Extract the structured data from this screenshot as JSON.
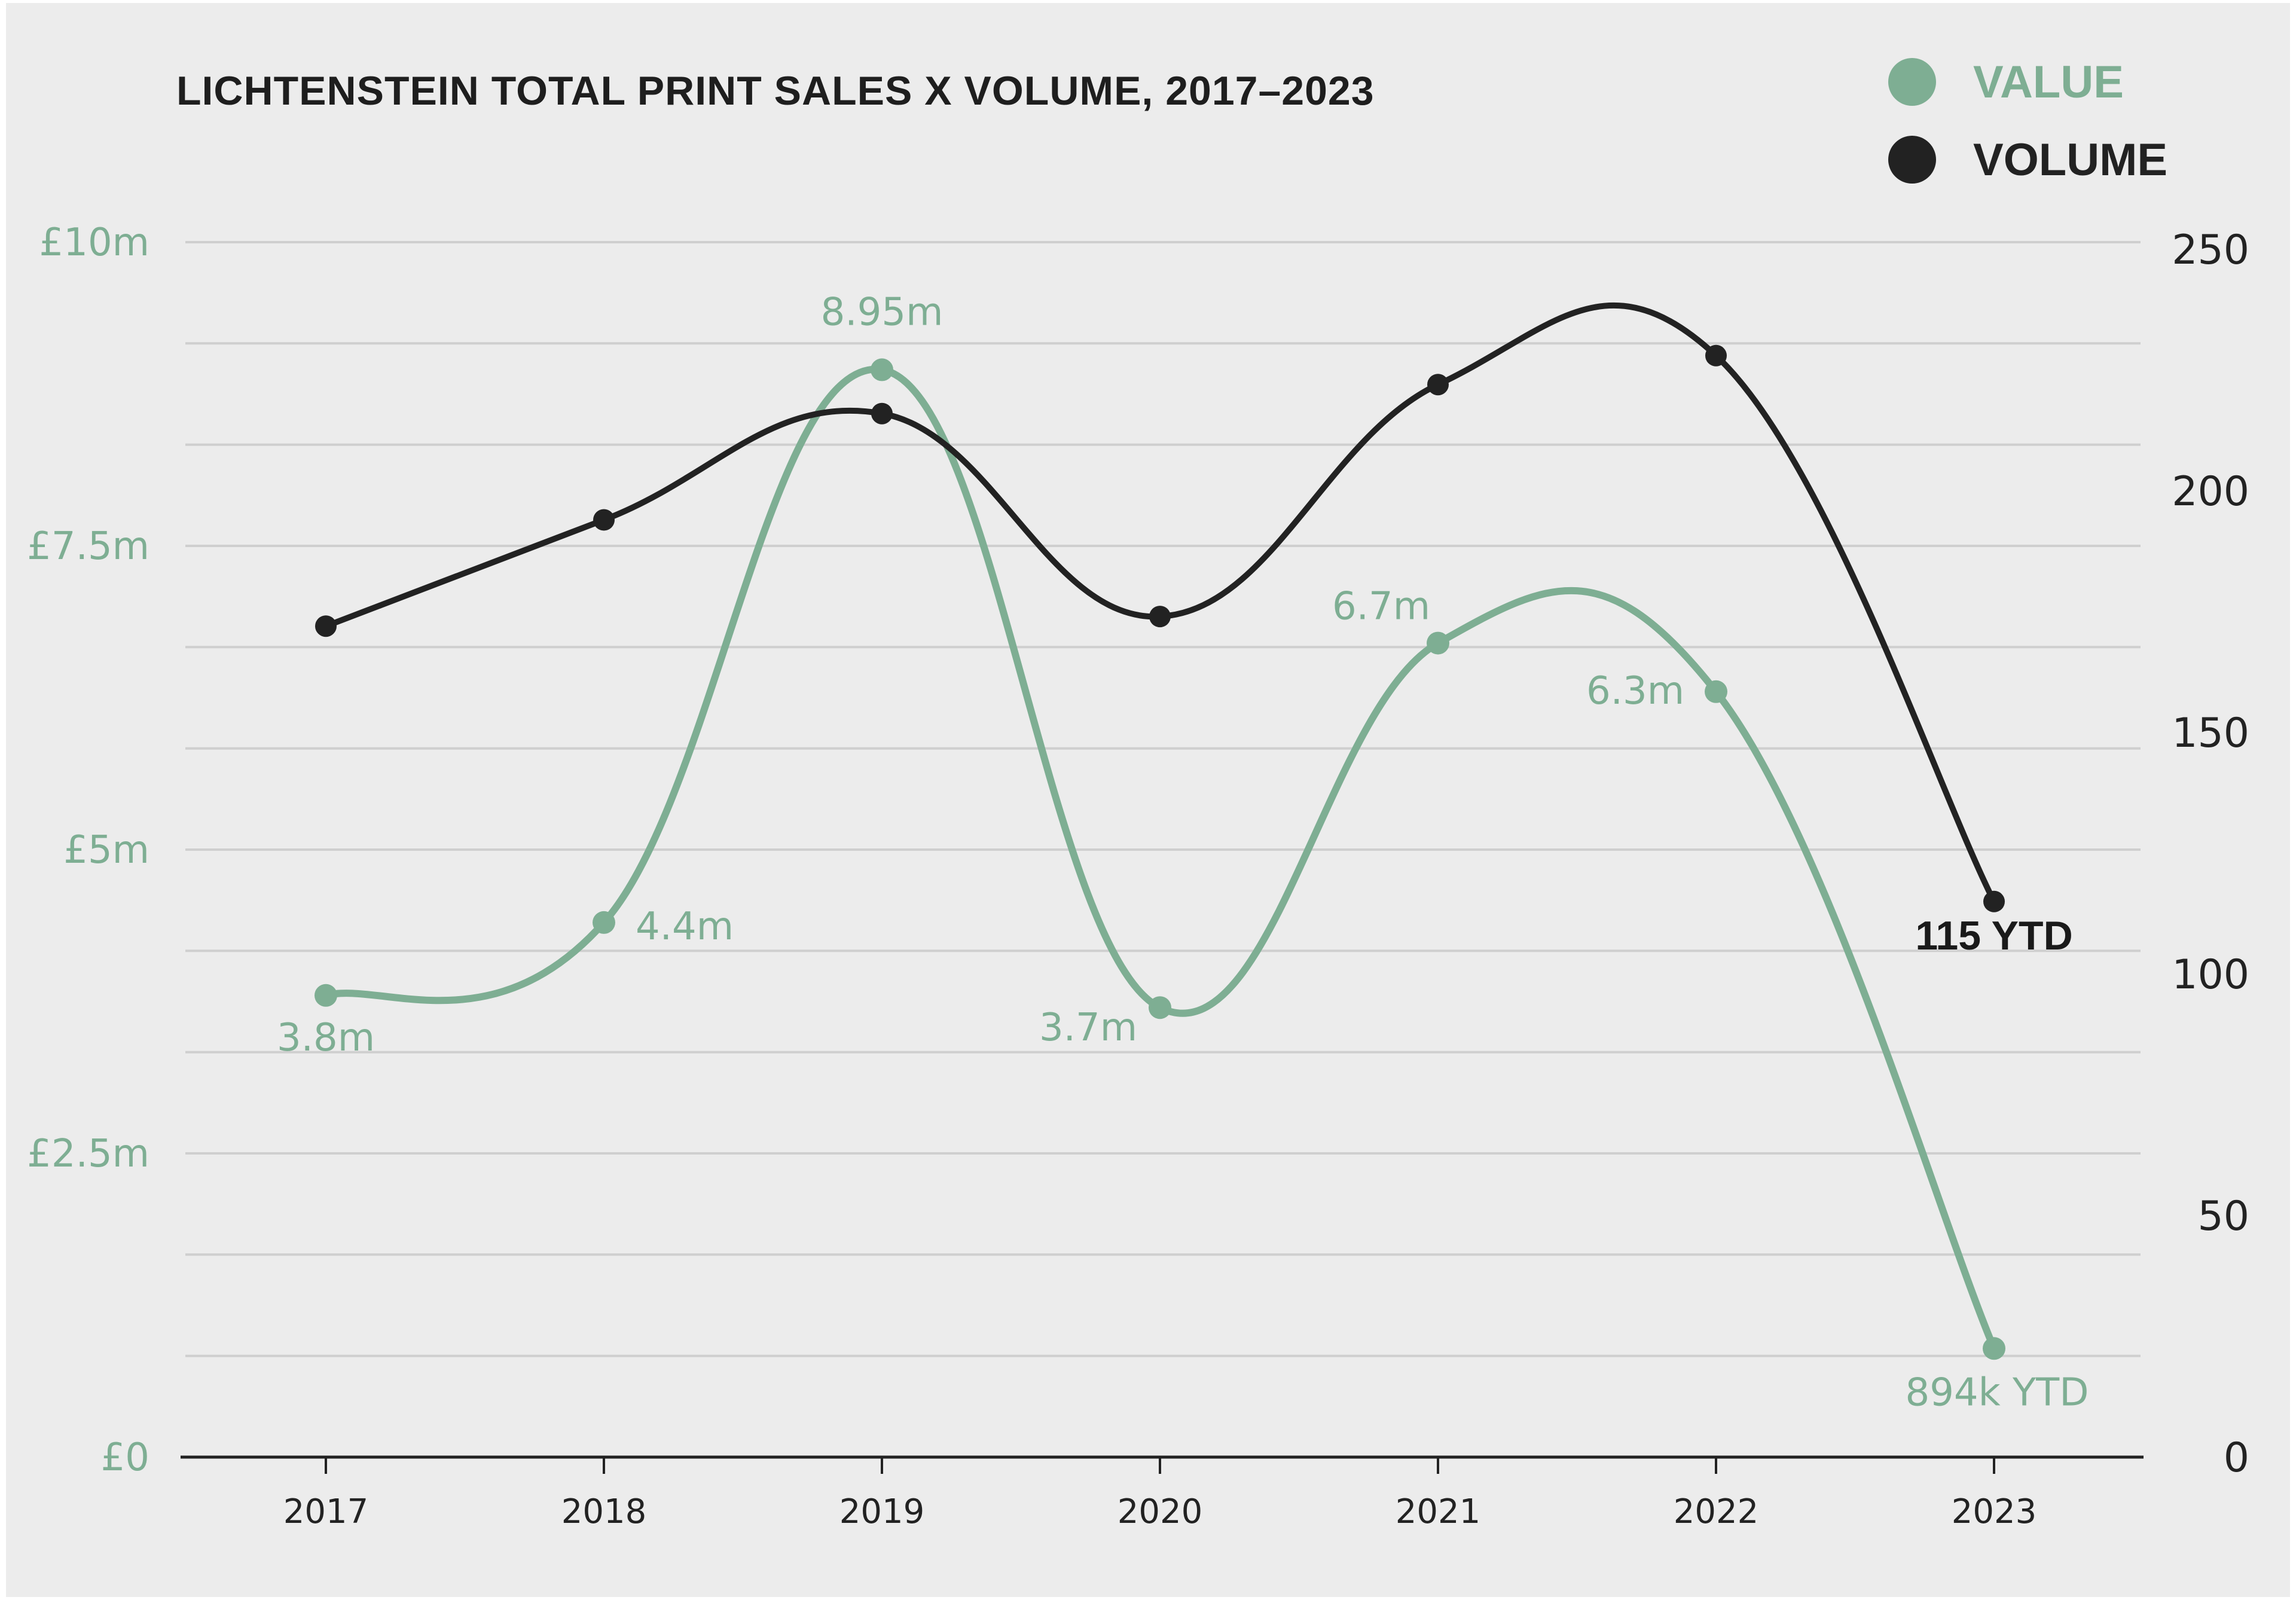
{
  "chart_data": {
    "type": "line",
    "title": "LICHTENSTEIN TOTAL PRINT SALES X VOLUME, 2017–2023",
    "x": [
      "2017",
      "2018",
      "2019",
      "2020",
      "2021",
      "2022",
      "2023"
    ],
    "legend": {
      "placement": "top-right",
      "items": [
        {
          "label": "VALUE",
          "color": "#7eae93"
        },
        {
          "label": "VOLUME",
          "color": "#222222"
        }
      ]
    },
    "y_left": {
      "ticks": [
        "£0",
        "£2.5m",
        "£5m",
        "£7.5m",
        "£10m"
      ],
      "tick_values": [
        0,
        2.5,
        5,
        7.5,
        10
      ],
      "range": [
        0,
        10
      ],
      "unit": "£m",
      "color": "#7eae93"
    },
    "y_right": {
      "ticks": [
        "0",
        "50",
        "100",
        "150",
        "200",
        "250"
      ],
      "tick_values": [
        0,
        50,
        100,
        150,
        200,
        250
      ],
      "range": [
        0,
        250
      ],
      "color": "#222222"
    },
    "grid": true,
    "series": [
      {
        "name": "VALUE",
        "axis": "left",
        "color": "#7eae93",
        "values": [
          3.8,
          4.4,
          8.95,
          3.7,
          6.7,
          6.3,
          0.894
        ],
        "labels": [
          "3.8m",
          "4.4m",
          "8.95m",
          "3.7m",
          "6.7m",
          "6.3m",
          "894k YTD"
        ]
      },
      {
        "name": "VOLUME",
        "axis": "right",
        "color": "#222222",
        "values": [
          172,
          194,
          216,
          174,
          222,
          228,
          115
        ],
        "labels": [
          "",
          "",
          "",
          "",
          "",
          "",
          "115 YTD"
        ]
      }
    ]
  }
}
